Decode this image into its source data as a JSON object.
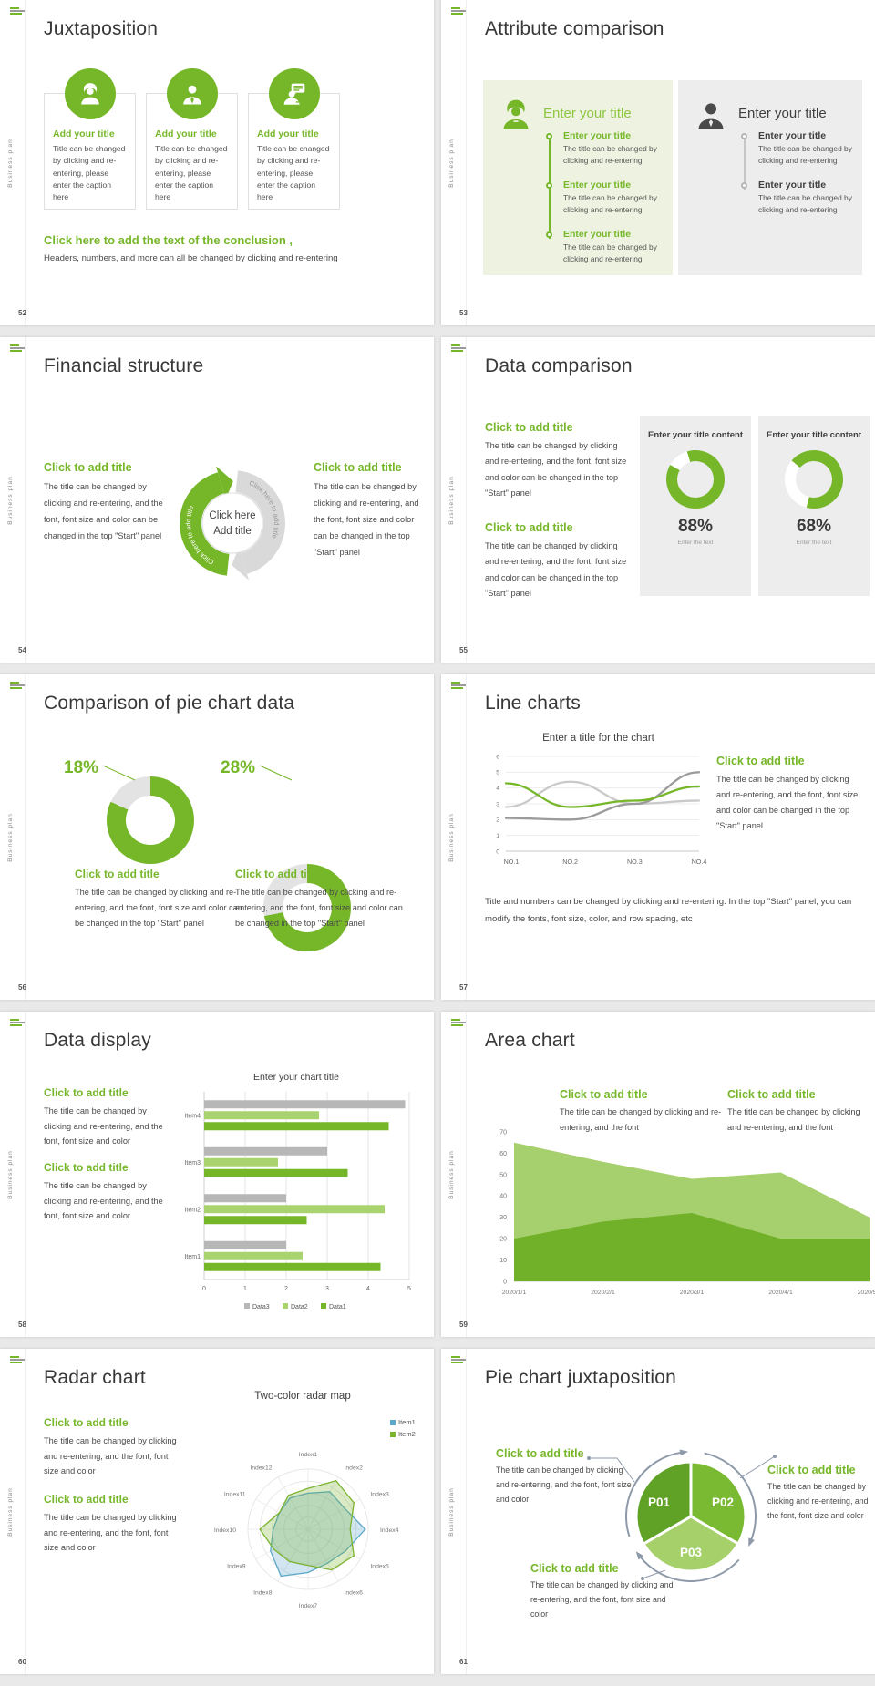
{
  "page_bg": "#e9e9e9",
  "colors": {
    "accent_green": "#76b72a",
    "light_green": "#a9d36e",
    "lighter_green": "#a6d06a",
    "panel_green": "#eef3e1",
    "panel_gray": "#ededed",
    "bar_gray": "#b7b7b7",
    "radar_blue": "#5ba7c9",
    "arrow_gray": "#8e99a9",
    "text_dark": "#3f3f3f"
  },
  "sidebar_label": "Business plan",
  "slides": [
    {
      "page": "52",
      "title": "Juxtaposition",
      "cards": [
        {
          "icon": "female-user-icon",
          "title": "Add your title",
          "body": "Title can be changed by clicking and re-entering, please enter the caption here"
        },
        {
          "icon": "male-user-icon",
          "title": "Add your title",
          "body": "Title can be changed by clicking and re-entering, please enter the caption here"
        },
        {
          "icon": "chat-user-icon",
          "title": "Add your title",
          "body": "Title can be changed by clicking and re-entering, please enter the caption here"
        }
      ],
      "conclusion": {
        "title": "Click here to add the text of the conclusion ,",
        "body": "Headers, numbers, and more can all be changed by clicking and re-entering"
      }
    },
    {
      "page": "53",
      "title": "Attribute comparison",
      "left": {
        "heading": "Enter your title",
        "items": [
          {
            "title": "Enter your title",
            "body": "The title can be changed by clicking and re-entering"
          },
          {
            "title": "Enter your title",
            "body": "The title can be changed by clicking and re-entering"
          },
          {
            "title": "Enter your title",
            "body": "The title can be changed by clicking and re-entering"
          }
        ]
      },
      "right": {
        "heading": "Enter your title",
        "items": [
          {
            "title": "Enter your title",
            "body": "The title can be changed by clicking and re-entering"
          },
          {
            "title": "Enter your title",
            "body": "The title can be changed by clicking and re-entering"
          }
        ]
      }
    },
    {
      "page": "54",
      "title": "Financial structure",
      "left": {
        "title": "Click to add title",
        "body": "The title can be changed by clicking and re-entering, and the font, font size and color can be changed in the top \"Start\" panel"
      },
      "right": {
        "title": "Click to add title",
        "body": "The title can be changed by clicking and re-entering, and the font, font size and color can be changed in the top \"Start\" panel"
      },
      "center": {
        "line1": "Click here",
        "line2": "Add title"
      },
      "arc_label_left": "Click here to add title",
      "arc_label_right": "Click here to add title"
    },
    {
      "page": "55",
      "title": "Data comparison",
      "blocks": [
        {
          "title": "Click to add title",
          "body": "The title can be changed by clicking and re-entering, and the font, font size and color can be changed in the top \"Start\" panel"
        },
        {
          "title": "Click to add title",
          "body": "The title can be changed by clicking and re-entering, and the font, font size and color can be changed in the top \"Start\" panel"
        }
      ],
      "panels": [
        {
          "heading": "Enter your title content",
          "percent": "88%",
          "value": 88,
          "caption": "Enter the text"
        },
        {
          "heading": "Enter your title content",
          "percent": "68%",
          "value": 68,
          "caption": "Enter the text"
        }
      ]
    },
    {
      "page": "56",
      "title": "Comparison of pie chart data",
      "donuts": [
        {
          "percent": "18%",
          "value": 18,
          "title": "Click to add title",
          "body": "The title can be changed by clicking and re-entering, and the font, font size and color can be changed in the top \"Start\" panel"
        },
        {
          "percent": "28%",
          "value": 28,
          "title": "Click to add title",
          "body": "The title can be changed by clicking and re-entering, and the font, font size and color can be changed in the top \"Start\" panel"
        }
      ]
    },
    {
      "page": "57",
      "title": "Line charts",
      "chart": {
        "type": "line",
        "title": "Enter a title for the chart",
        "x": [
          "NO.1",
          "NO.2",
          "NO.3",
          "NO.4"
        ],
        "ylim": [
          0,
          6
        ],
        "yticks": [
          0,
          1,
          2,
          3,
          4,
          5,
          6
        ],
        "series": [
          {
            "name": "green-line",
            "color": "#76b72a",
            "values": [
              4.3,
              2.8,
              3.2,
              4.1
            ]
          },
          {
            "name": "dark-gray-line",
            "color": "#9b9b9b",
            "values": [
              2.1,
              2.0,
              3.0,
              5.0
            ]
          },
          {
            "name": "light-gray-line",
            "color": "#c9c9c9",
            "values": [
              2.8,
              4.4,
              3.0,
              3.2
            ]
          }
        ]
      },
      "side": {
        "title": "Click to add title",
        "body": "The title can be changed by clicking and re-entering, and the font, font size and color can be changed in the top \"Start\" panel"
      },
      "footer": "Title and numbers can be changed by clicking and re-entering. In the top \"Start\" panel, you can modify the fonts, font size, color, and row spacing, etc"
    },
    {
      "page": "58",
      "title": "Data display",
      "blocks": [
        {
          "title": "Click to add title",
          "body": "The title can be changed by clicking and re-entering, and the font, font size and color"
        },
        {
          "title": "Click to add title",
          "body": "The title can be changed by clicking and re-entering, and the font, font size and color"
        }
      ],
      "chart": {
        "type": "bar",
        "title": "Enter your chart title",
        "categories": [
          "Item1",
          "Item2",
          "Item3",
          "Item4"
        ],
        "xlim": [
          0,
          5
        ],
        "xticks": [
          0,
          1,
          2,
          3,
          4,
          5
        ],
        "series": [
          {
            "name": "Data3",
            "color": "#b7b7b7",
            "values": [
              2.0,
              2.0,
              3.0,
              4.9
            ]
          },
          {
            "name": "Data2",
            "color": "#a9d36e",
            "values": [
              2.4,
              4.4,
              1.8,
              2.8
            ]
          },
          {
            "name": "Data1",
            "color": "#76b72a",
            "values": [
              4.3,
              2.5,
              3.5,
              4.5
            ]
          }
        ],
        "legend": [
          "Data3",
          "Data2",
          "Data1"
        ]
      }
    },
    {
      "page": "59",
      "title": "Area chart",
      "blocks": [
        {
          "title": "Click to add title",
          "body": "The title can be changed by clicking and re-entering, and the font"
        },
        {
          "title": "Click to add title",
          "body": "The title can be changed by clicking and re-entering, and the font"
        }
      ],
      "chart": {
        "type": "area",
        "x": [
          "2020/1/1",
          "2020/2/1",
          "2020/3/1",
          "2020/4/1",
          "2020/5/1"
        ],
        "ylim": [
          0,
          70
        ],
        "yticks": [
          0,
          10,
          20,
          30,
          40,
          50,
          60,
          70
        ],
        "series": [
          {
            "name": "light-green-area",
            "color": "#a6cf6d",
            "values": [
              65,
              56,
              48,
              51,
              30
            ]
          },
          {
            "name": "dark-green-area",
            "color": "#70b129",
            "values": [
              20,
              28,
              32,
              20,
              20
            ]
          }
        ]
      }
    },
    {
      "page": "60",
      "title": "Radar chart",
      "blocks": [
        {
          "title": "Click to add title",
          "body": "The title can be changed by clicking and re-entering, and the font, font size and color"
        },
        {
          "title": "Click to add title",
          "body": "The title can be changed by clicking and re-entering, and the font, font size and color"
        }
      ],
      "chart": {
        "type": "radar",
        "title": "Two-color radar map",
        "axes": [
          "Index1",
          "Index2",
          "Index3",
          "Index4",
          "Index5",
          "Index6",
          "Index7",
          "Index8",
          "Index9",
          "Index10",
          "Index11",
          "Index12"
        ],
        "series": [
          {
            "name": "Item1",
            "color": "#5ba7c9",
            "values": [
              0.6,
              0.72,
              0.7,
              0.95,
              0.72,
              0.65,
              0.72,
              0.9,
              0.72,
              0.58,
              0.55,
              0.6
            ]
          },
          {
            "name": "Item2",
            "color": "#7ab32e",
            "values": [
              0.68,
              0.93,
              0.88,
              0.7,
              0.88,
              0.78,
              0.6,
              0.62,
              0.66,
              0.8,
              0.55,
              0.65
            ]
          }
        ]
      }
    },
    {
      "page": "61",
      "title": "Pie chart juxtaposition",
      "segments": [
        "P01",
        "P02",
        "P03"
      ],
      "blocks": [
        {
          "title": "Click to add title",
          "body": "The title can be changed by clicking and re-entering, and the font, font size and color"
        },
        {
          "title": "Click to add title",
          "body": "The title can be changed by clicking and re-entering, and the font, font size and color"
        },
        {
          "title": "Click to add title",
          "body": "The title can be changed by clicking and re-entering, and the font, font size and color"
        }
      ]
    }
  ]
}
